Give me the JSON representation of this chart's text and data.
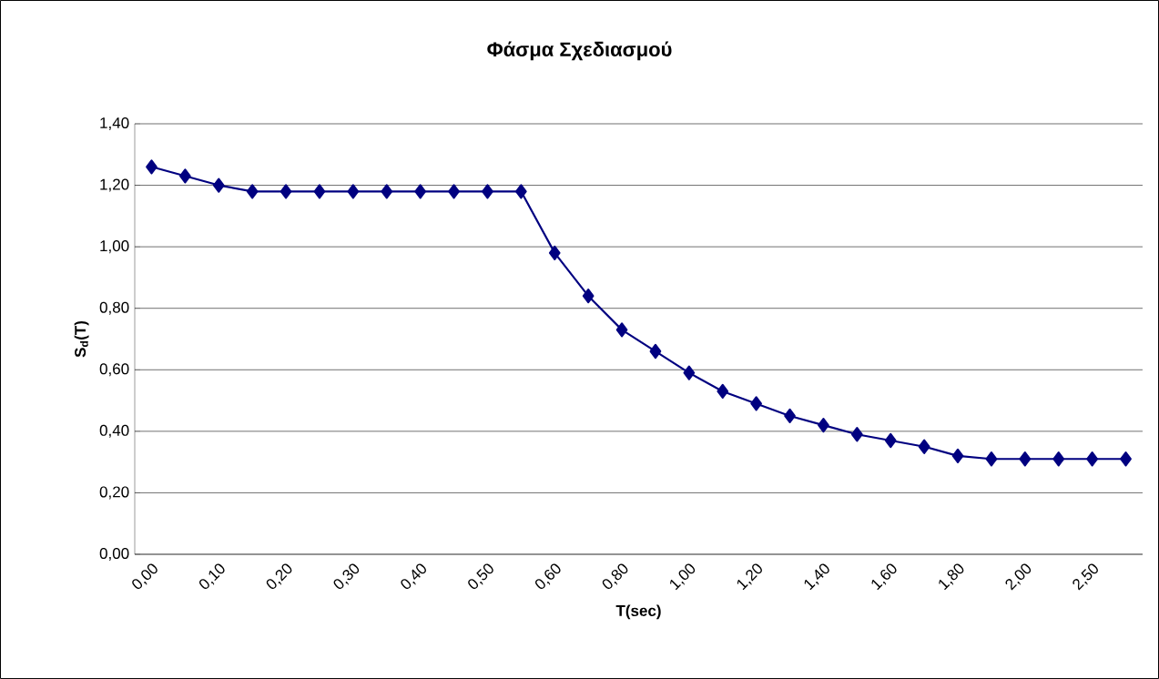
{
  "chart_data": {
    "type": "line",
    "title": "Φάσμα Σχεδιασμού",
    "xlabel": "T(sec)",
    "ylabel": "S$_{d}$(T)",
    "categories": [
      "0,00",
      null,
      "0,10",
      null,
      "0,20",
      null,
      "0,30",
      null,
      "0,40",
      null,
      "0,50",
      null,
      "0,60",
      null,
      "0,80",
      null,
      "1,00",
      null,
      "1,20",
      null,
      "1,40",
      null,
      "1,60",
      null,
      "1,80",
      null,
      "2,00",
      null,
      "2,50",
      null
    ],
    "series": [
      {
        "color": "#000080",
        "values": [
          1.26,
          1.23,
          1.2,
          1.18,
          1.18,
          1.18,
          1.18,
          1.18,
          1.18,
          1.18,
          1.18,
          1.18,
          0.98,
          0.84,
          0.73,
          0.66,
          0.59,
          0.53,
          0.49,
          0.45,
          0.42,
          0.39,
          0.37,
          0.35,
          0.32,
          0.31,
          0.31,
          0.31,
          0.31,
          0.31
        ]
      }
    ],
    "ylim": [
      0,
      1.4
    ],
    "yticks": [
      {
        "value": 0,
        "label": "0,00"
      },
      {
        "value": 0.2,
        "label": "0,20"
      },
      {
        "value": 0.4,
        "label": "0,40"
      },
      {
        "value": 0.6,
        "label": "0,60"
      },
      {
        "value": 0.8,
        "label": "0,80"
      },
      {
        "value": 1.0,
        "label": "1,00"
      },
      {
        "value": 1.2,
        "label": "1,20"
      },
      {
        "value": 1.4,
        "label": "1,40"
      }
    ],
    "grid": "y",
    "marker": "diamond",
    "line_style": "solid"
  }
}
